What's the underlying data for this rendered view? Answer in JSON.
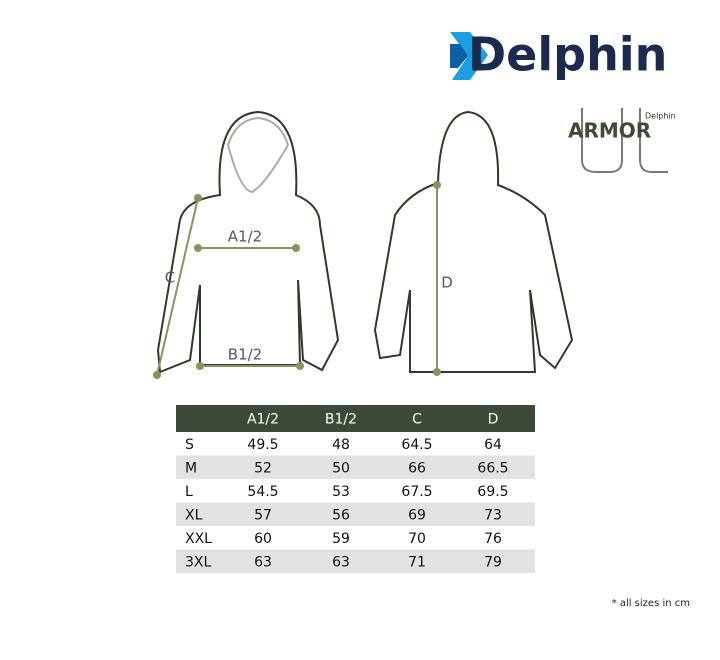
{
  "brand": "Delphin",
  "sub_logo": {
    "brand": "Delphin",
    "name": "ARMOR"
  },
  "diagram": {
    "front": {
      "chest": "A1/2",
      "hem": "B1/2",
      "sleeve": "C"
    },
    "back": {
      "length": "D"
    }
  },
  "table": {
    "columns": [
      "A1/2",
      "B1/2",
      "C",
      "D"
    ],
    "rows": [
      [
        "S",
        49.5,
        48,
        64.5,
        64
      ],
      [
        "M",
        52,
        50,
        66,
        66.5
      ],
      [
        "L",
        54.5,
        53,
        67.5,
        69.5
      ],
      [
        "XL",
        57,
        56,
        69,
        73
      ],
      [
        "XXL",
        60,
        59,
        70,
        76
      ],
      [
        "3XL",
        63,
        63,
        71,
        79
      ]
    ]
  },
  "note": "* all sizes in cm"
}
